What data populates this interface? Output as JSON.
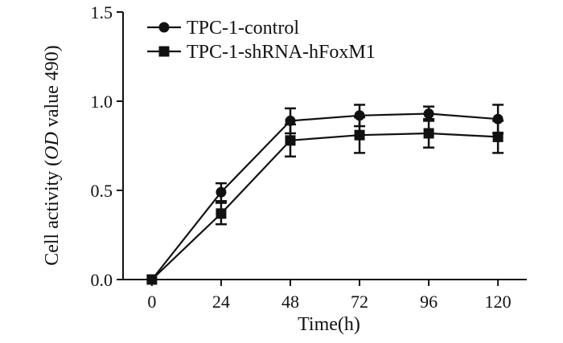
{
  "chart_data": {
    "type": "line",
    "title": "",
    "xlabel": "Time(h)",
    "ylabel": {
      "prefix": "Cell activity (",
      "italic": "OD",
      "suffix": " value 490)"
    },
    "x": [
      0,
      24,
      48,
      72,
      96,
      120
    ],
    "x_tick_labels": [
      "0",
      "24",
      "48",
      "72",
      "96",
      "120"
    ],
    "y_ticks": [
      0.0,
      0.5,
      1.0,
      1.5
    ],
    "y_tick_labels": [
      "0.0",
      "0.5",
      "1.0",
      "1.5"
    ],
    "xlim": [
      -10,
      130
    ],
    "ylim": [
      0,
      1.5
    ],
    "grid": false,
    "legend_position": "top-left",
    "series": [
      {
        "name": "TPC-1-control",
        "marker": "circle",
        "color": "#111111",
        "values": [
          0.0,
          0.49,
          0.89,
          0.92,
          0.93,
          0.9
        ],
        "errors": [
          0.0,
          0.05,
          0.07,
          0.06,
          0.04,
          0.08
        ]
      },
      {
        "name": "TPC-1-shRNA-hFoxM1",
        "marker": "square",
        "color": "#111111",
        "values": [
          0.0,
          0.37,
          0.78,
          0.81,
          0.82,
          0.8
        ],
        "errors": [
          0.0,
          0.06,
          0.09,
          0.1,
          0.08,
          0.09
        ]
      }
    ]
  }
}
